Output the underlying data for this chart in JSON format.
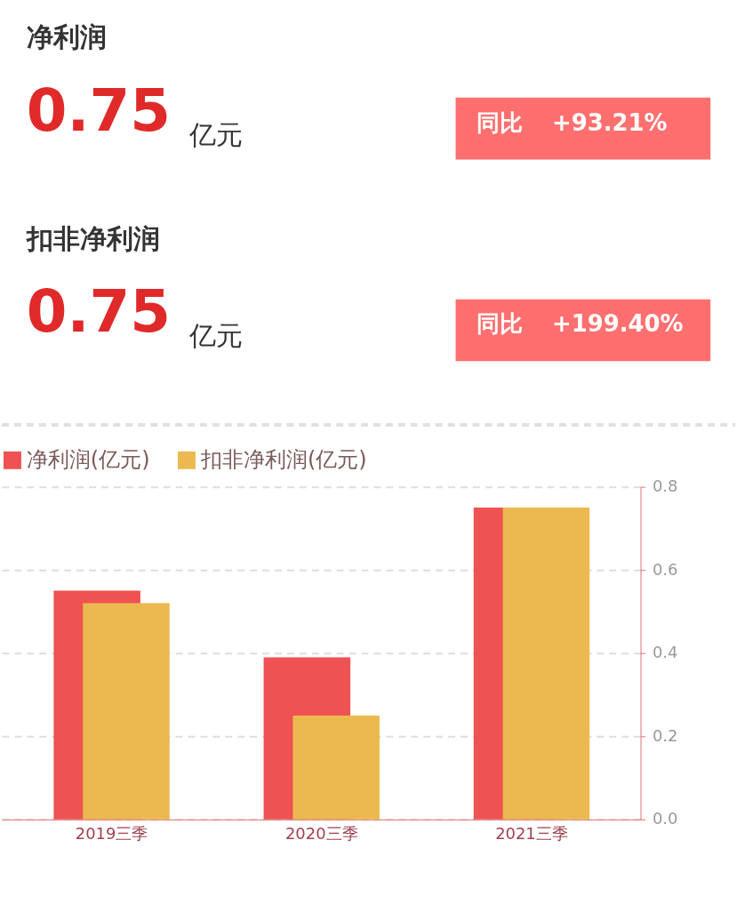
{
  "chart_data": [
    {
      "type": "other",
      "annotations": [
        "净利润",
        "0.75",
        "亿元",
        "同比",
        "+93.21%",
        "扣非净利润",
        "0.75",
        "亿元",
        "同比",
        "+199.40%"
      ]
    },
    {
      "type": "bar",
      "categories": [
        "2019三季",
        "2020三季",
        "2021三季"
      ],
      "series": [
        {
          "name": "净利润(亿元)",
          "color": "#ee5253",
          "values": [
            0.55,
            0.39,
            0.75
          ]
        },
        {
          "name": "扣非净利润(亿元)",
          "color": "#ebb94f",
          "values": [
            0.52,
            0.25,
            0.75
          ]
        }
      ],
      "ylim": [
        0,
        0.8
      ],
      "yticks": [
        {
          "value": 0,
          "label": "0.0"
        },
        0.2,
        0.4,
        0.6,
        0.8
      ],
      "grid": "y",
      "legend": "top"
    }
  ]
}
